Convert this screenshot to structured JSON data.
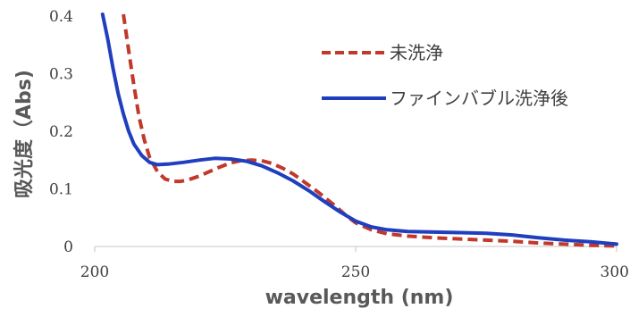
{
  "chart_data": {
    "type": "line",
    "xlabel": "wavelength (nm)",
    "ylabel": "吸光度（Abs)",
    "xlim": [
      200,
      300
    ],
    "ylim": [
      0,
      0.4
    ],
    "x_ticks": [
      "200",
      "250",
      "300"
    ],
    "y_ticks": [
      "0",
      "0.1",
      "0.2",
      "0.3",
      "0.4"
    ],
    "grid": false,
    "legend_position": "top-right",
    "series": [
      {
        "name": "未洗浄",
        "color": "#c0392b",
        "style": "dashed",
        "x": [
          205.5,
          206.5,
          207.5,
          208.5,
          209.5,
          210.5,
          212,
          213.5,
          215,
          216.5,
          218,
          220,
          222,
          224,
          226,
          228,
          230,
          232,
          234,
          236,
          238,
          240,
          243,
          246,
          248,
          250,
          253,
          256,
          260,
          265,
          270,
          275,
          280,
          285,
          290,
          295,
          300
        ],
        "y": [
          0.405,
          0.34,
          0.28,
          0.225,
          0.185,
          0.155,
          0.13,
          0.117,
          0.113,
          0.113,
          0.116,
          0.122,
          0.13,
          0.138,
          0.145,
          0.149,
          0.15,
          0.149,
          0.144,
          0.136,
          0.126,
          0.113,
          0.093,
          0.071,
          0.055,
          0.041,
          0.029,
          0.022,
          0.018,
          0.015,
          0.013,
          0.011,
          0.009,
          0.006,
          0.004,
          0.002,
          0.001
        ]
      },
      {
        "name": "ファインバブル洗浄後",
        "color": "#1f3fbf",
        "style": "solid",
        "x": [
          201.5,
          202.5,
          203.5,
          204.5,
          205.5,
          206.5,
          207.5,
          209,
          210.5,
          212,
          214,
          217,
          220,
          223,
          226,
          229,
          232,
          235,
          238,
          241,
          244,
          247,
          250,
          253,
          256,
          260,
          265,
          270,
          275,
          280,
          285,
          290,
          295,
          300
        ],
        "y": [
          0.405,
          0.36,
          0.31,
          0.265,
          0.23,
          0.2,
          0.178,
          0.158,
          0.146,
          0.142,
          0.143,
          0.146,
          0.15,
          0.153,
          0.152,
          0.148,
          0.14,
          0.128,
          0.114,
          0.097,
          0.078,
          0.06,
          0.044,
          0.034,
          0.029,
          0.026,
          0.025,
          0.024,
          0.023,
          0.02,
          0.015,
          0.011,
          0.008,
          0.004
        ]
      }
    ]
  }
}
